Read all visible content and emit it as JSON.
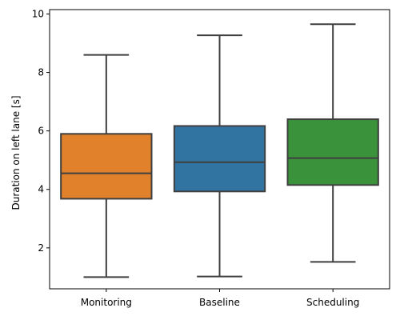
{
  "chart_data": {
    "type": "box",
    "title": "",
    "xlabel": "",
    "ylabel": "Duration on left lane [s]",
    "ylim": [
      0.6,
      10.15
    ],
    "yticks": [
      2,
      4,
      6,
      8,
      10
    ],
    "ytick_labels": [
      "2",
      "4",
      "6",
      "8",
      "10"
    ],
    "grid": false,
    "categories": [
      "Monitoring",
      "Baseline",
      "Scheduling"
    ],
    "boxes": [
      {
        "category": "Monitoring",
        "whisker_low": 1.0,
        "q1": 3.68,
        "median": 4.55,
        "q3": 5.9,
        "whisker_high": 8.6,
        "color": "#e1812c"
      },
      {
        "category": "Baseline",
        "whisker_low": 1.02,
        "q1": 3.93,
        "median": 4.93,
        "q3": 6.17,
        "whisker_high": 9.27,
        "color": "#3274a1"
      },
      {
        "category": "Scheduling",
        "whisker_low": 1.52,
        "q1": 4.15,
        "median": 5.07,
        "q3": 6.4,
        "whisker_high": 9.65,
        "color": "#3a923a"
      }
    ],
    "line_color": "#3f3f3f"
  }
}
